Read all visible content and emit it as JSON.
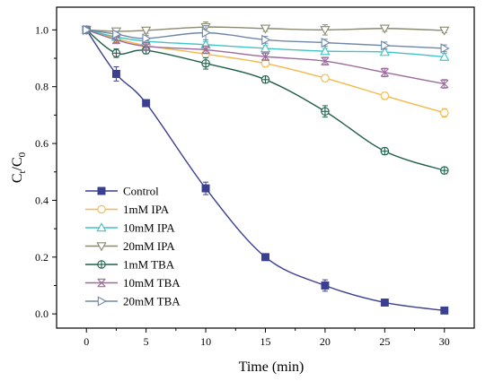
{
  "chart_data": {
    "type": "line",
    "xlabel": "Time (min)",
    "ylabel_main": "C",
    "ylabel_sub1": "t",
    "ylabel_sep": "/C",
    "ylabel_sub2": "0",
    "xlim": [
      -2.5,
      32.5
    ],
    "ylim": [
      -0.05,
      1.08
    ],
    "x_ticks": [
      "0",
      "5",
      "10",
      "15",
      "20",
      "25",
      "30"
    ],
    "y_ticks": [
      "0.0",
      "0.2",
      "0.4",
      "0.6",
      "0.8",
      "1.0"
    ],
    "x": [
      0,
      2.5,
      5,
      10,
      15,
      20,
      25,
      30
    ],
    "legend_position": "bottom-left",
    "series": [
      {
        "name": "Control",
        "color": "#3b3f8f",
        "marker": "filled-square",
        "values": [
          1.0,
          0.845,
          0.742,
          0.442,
          0.2,
          0.1,
          0.04,
          0.012
        ],
        "errors": [
          0.01,
          0.025,
          0.012,
          0.022,
          0.012,
          0.02,
          0.008,
          0.006
        ]
      },
      {
        "name": "1mM IPA",
        "color": "#f5b84a",
        "marker": "circle",
        "values": [
          1.0,
          0.97,
          0.945,
          0.915,
          0.882,
          0.83,
          0.768,
          0.708
        ],
        "errors": [
          0.01,
          0.012,
          0.01,
          0.01,
          0.012,
          0.012,
          0.012,
          0.015
        ]
      },
      {
        "name": "10mM IPA",
        "color": "#3fc3c3",
        "marker": "triangle-up",
        "values": [
          1.0,
          0.975,
          0.96,
          0.948,
          0.935,
          0.925,
          0.922,
          0.905
        ],
        "errors": [
          0.01,
          0.01,
          0.01,
          0.01,
          0.01,
          0.01,
          0.01,
          0.012
        ]
      },
      {
        "name": "20mM IPA",
        "color": "#8a8a70",
        "marker": "triangle-down",
        "values": [
          1.0,
          0.995,
          0.998,
          1.01,
          1.005,
          1.0,
          1.005,
          0.998
        ],
        "errors": [
          0.01,
          0.008,
          0.01,
          0.018,
          0.01,
          0.018,
          0.01,
          0.008
        ]
      },
      {
        "name": "1mM TBA",
        "color": "#1f5e4a",
        "marker": "circle-cross",
        "values": [
          1.0,
          0.918,
          0.928,
          0.882,
          0.825,
          0.713,
          0.573,
          0.505
        ],
        "errors": [
          0.01,
          0.015,
          0.012,
          0.02,
          0.012,
          0.02,
          0.012,
          0.012
        ]
      },
      {
        "name": "10mM TBA",
        "color": "#9c6b9c",
        "marker": "x-bar",
        "values": [
          1.0,
          0.965,
          0.942,
          0.93,
          0.906,
          0.89,
          0.85,
          0.81
        ],
        "errors": [
          0.01,
          0.01,
          0.012,
          0.012,
          0.012,
          0.012,
          0.015,
          0.015
        ]
      },
      {
        "name": "20mM TBA",
        "color": "#6d87a8",
        "marker": "triangle-right",
        "values": [
          1.0,
          0.985,
          0.97,
          0.99,
          0.965,
          0.955,
          0.945,
          0.935
        ],
        "errors": [
          0.01,
          0.01,
          0.01,
          0.025,
          0.012,
          0.012,
          0.012,
          0.012
        ]
      }
    ]
  }
}
